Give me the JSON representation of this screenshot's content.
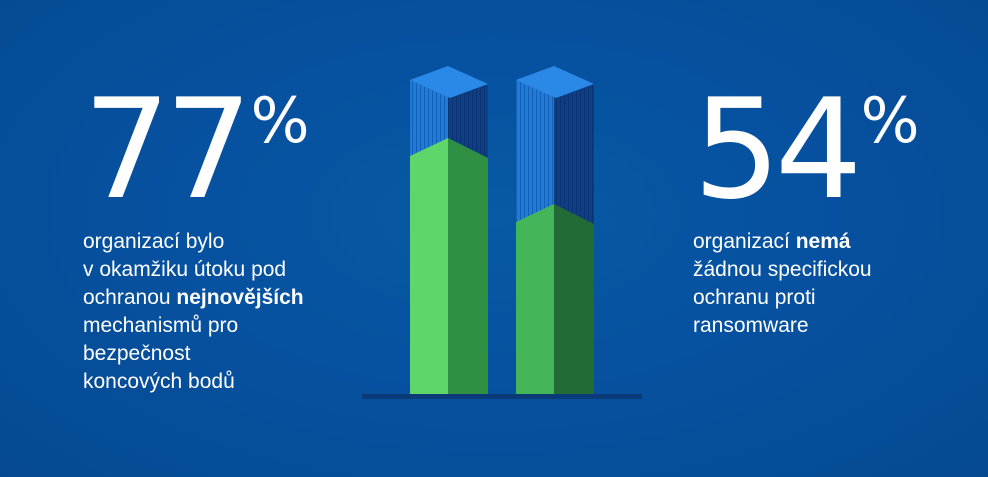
{
  "left_stat": {
    "value": "77",
    "percent_sign": "%",
    "lines": [
      {
        "pre": "organizací bylo",
        "bold": "",
        "post": ""
      },
      {
        "pre": "v okamžiku útoku pod",
        "bold": "",
        "post": ""
      },
      {
        "pre": "ochranou ",
        "bold": "nejnovějších",
        "post": ""
      },
      {
        "pre": "mechanismů pro",
        "bold": "",
        "post": ""
      },
      {
        "pre": "bezpečnost",
        "bold": "",
        "post": ""
      },
      {
        "pre": "koncových bodů",
        "bold": "",
        "post": ""
      }
    ]
  },
  "right_stat": {
    "value": "54",
    "percent_sign": "%",
    "lines": [
      {
        "pre": "organizací ",
        "bold": "nemá",
        "post": ""
      },
      {
        "pre": "žádnou specifickou",
        "bold": "",
        "post": ""
      },
      {
        "pre": "ochranu proti",
        "bold": "",
        "post": ""
      },
      {
        "pre": "ransomware",
        "bold": "",
        "post": ""
      }
    ]
  },
  "colors": {
    "background": "#0651a0",
    "text": "#ffffff",
    "tower_blue_front": "#1d78d6",
    "tower_blue_side": "#0e3f86",
    "tower_green_front": "#5fd66a",
    "tower_green_side": "#2f8f43",
    "ground": "#0a3a78"
  },
  "illustration": {
    "icon": "twin-towers-icon",
    "left_tower_green_level": 0.77,
    "right_tower_green_level": 0.54
  }
}
